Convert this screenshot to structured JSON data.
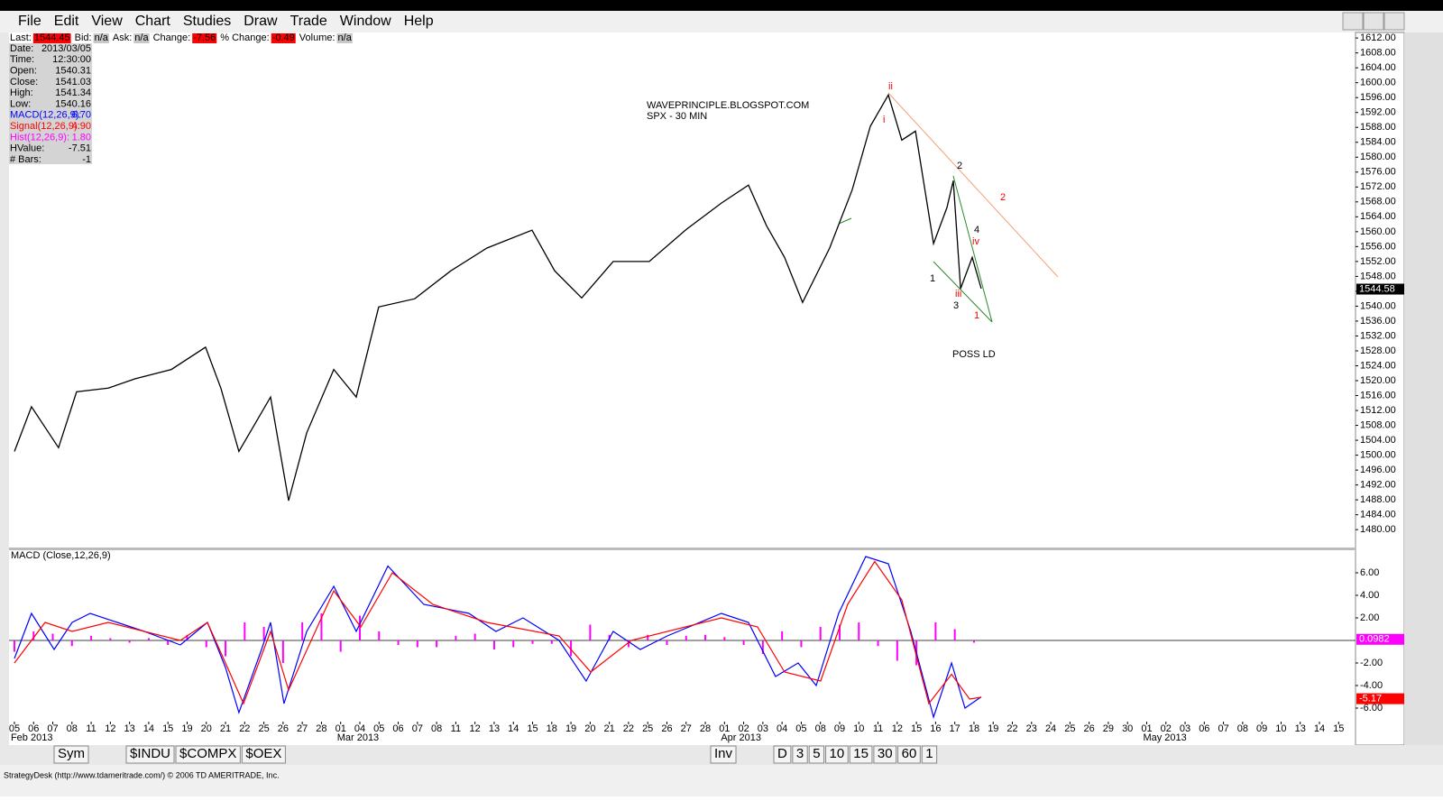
{
  "menu": [
    "File",
    "Edit",
    "View",
    "Chart",
    "Studies",
    "Draw",
    "Trade",
    "Window",
    "Help"
  ],
  "quote_bar": [
    [
      "Last:",
      "1544.45"
    ],
    [
      "Bid:",
      "n/a"
    ],
    [
      "Ask:",
      "n/a"
    ],
    [
      "Change:",
      "-7.56"
    ],
    [
      "% Change:",
      "-0.49"
    ],
    [
      "Volume:",
      "n/a"
    ]
  ],
  "info_panel": [
    [
      "Date:",
      "2013/03/05"
    ],
    [
      "Time:",
      "12:30:00"
    ],
    [
      "Open:",
      "1540.31"
    ],
    [
      "Close:",
      "1541.03"
    ],
    [
      "High:",
      "1541.34"
    ],
    [
      "Low:",
      "1540.16"
    ],
    [
      "MACD(12,26,9):",
      "6.70"
    ],
    [
      "Signal(12,26,9):",
      "4.90"
    ],
    [
      "Hist(12,26,9):",
      "1.80"
    ],
    [
      "HValue:",
      "-7.51"
    ],
    [
      "# Bars:",
      "-1"
    ]
  ],
  "chart_data": [
    {
      "type": "line",
      "title": "WAVEPRINCIPLE.BLOGSPOT.COM",
      "subtitle": "SPX - 30 MIN",
      "annotations": [
        "ii",
        "i",
        "2",
        "2",
        "4",
        "iv",
        "1",
        "iii",
        "3",
        "1",
        "POSS LD"
      ],
      "xlim": [
        -0.28,
        69.88
      ],
      "ylim": [
        1475.2,
        1613
      ],
      "yticks": [
        {
          "value": 1612,
          "label": "1612.00"
        },
        {
          "value": 1608,
          "label": "1608.00"
        },
        {
          "value": 1604,
          "label": "1604.00"
        },
        {
          "value": 1600,
          "label": "1600.00"
        },
        {
          "value": 1596,
          "label": "1596.00"
        },
        {
          "value": 1592,
          "label": "1592.00"
        },
        {
          "value": 1588,
          "label": "1588.00"
        },
        {
          "value": 1584,
          "label": "1584.00"
        },
        {
          "value": 1580,
          "label": "1580.00"
        },
        {
          "value": 1576,
          "label": "1576.00"
        },
        {
          "value": 1572,
          "label": "1572.00"
        },
        {
          "value": 1568,
          "label": "1568.00"
        },
        {
          "value": 1564,
          "label": "1564.00"
        },
        {
          "value": 1560,
          "label": "1560.00"
        },
        {
          "value": 1556,
          "label": "1556.00"
        },
        {
          "value": 1552,
          "label": "1552.00"
        },
        {
          "value": 1548,
          "label": "1548.00"
        },
        {
          "value": 1544,
          "label": "1544.00"
        },
        {
          "value": 1540,
          "label": "1540.00"
        },
        {
          "value": 1536,
          "label": "1536.00"
        },
        {
          "value": 1532,
          "label": "1532.00"
        },
        {
          "value": 1528,
          "label": "1528.00"
        },
        {
          "value": 1524,
          "label": "1524.00"
        },
        {
          "value": 1520,
          "label": "1520.00"
        },
        {
          "value": 1516,
          "label": "1516.00"
        },
        {
          "value": 1512,
          "label": "1512.00"
        },
        {
          "value": 1508,
          "label": "1508.00"
        },
        {
          "value": 1504,
          "label": "1504.00"
        },
        {
          "value": 1500,
          "label": "1500.00"
        },
        {
          "value": 1496,
          "label": "1496.00"
        },
        {
          "value": 1492,
          "label": "1492.00"
        },
        {
          "value": 1488,
          "label": "1488.00"
        },
        {
          "value": 1484,
          "label": "1484.00"
        },
        {
          "value": 1480,
          "label": "1480.00"
        }
      ],
      "last_value": 1544.58,
      "series": [
        {
          "name": "SPX",
          "color": "#000000",
          "x": [
            0,
            0.89,
            2.3,
            3.24,
            4.89,
            6.3,
            8.18,
            9.96,
            10.76,
            11.7,
            13.35,
            14.29,
            15.23,
            16.64,
            17.81,
            18.98,
            20.86,
            22.74,
            24.62,
            26.97,
            28.15,
            29.56,
            31.2,
            33.08,
            34.96,
            36.84,
            38.25,
            39.19,
            40.13,
            41.07,
            42.48,
            43.66,
            44.6,
            45.54,
            46.24,
            46.95,
            47.89,
            48.59,
            48.92,
            49.3,
            49.91,
            50.38
          ],
          "values": [
            1501,
            1513,
            1502,
            1517,
            1518,
            1520.5,
            1523,
            1529,
            1518,
            1501,
            1515.6,
            1487.8,
            1506,
            1523,
            1515.6,
            1539.8,
            1542,
            1549.5,
            1555.6,
            1560.4,
            1549.5,
            1542.2,
            1552,
            1552,
            1560.4,
            1567.7,
            1572.5,
            1561.6,
            1553.1,
            1541,
            1555.6,
            1571.3,
            1588.3,
            1596.7,
            1584.6,
            1587,
            1556.8,
            1566.5,
            1573.7,
            1544.7,
            1553.1,
            1544.7
          ]
        }
      ]
    },
    {
      "type": "line",
      "title": "MACD (Close,12,26,9)",
      "xlim": [
        -0.28,
        69.88
      ],
      "ylim": [
        -7.2,
        8
      ],
      "yticks": [
        {
          "value": 6,
          "label": "6.00"
        },
        {
          "value": 4,
          "label": "4.00"
        },
        {
          "value": 2,
          "label": "2.00"
        },
        {
          "value": -2,
          "label": "-2.00"
        },
        {
          "value": -4,
          "label": "-4.00"
        },
        {
          "value": -6,
          "label": "-6.00"
        }
      ],
      "xticks": [
        {
          "value": 0,
          "label": "05"
        },
        {
          "value": 1,
          "label": "06"
        },
        {
          "value": 2,
          "label": "07"
        },
        {
          "value": 3,
          "label": "08"
        },
        {
          "value": 4,
          "label": "11"
        },
        {
          "value": 5,
          "label": "12"
        },
        {
          "value": 6,
          "label": "13"
        },
        {
          "value": 7,
          "label": "14"
        },
        {
          "value": 8,
          "label": "15"
        },
        {
          "value": 9,
          "label": "19"
        },
        {
          "value": 10,
          "label": "20"
        },
        {
          "value": 11,
          "label": "21"
        },
        {
          "value": 12,
          "label": "22"
        },
        {
          "value": 13,
          "label": "25"
        },
        {
          "value": 14,
          "label": "26"
        },
        {
          "value": 15,
          "label": "27"
        },
        {
          "value": 16,
          "label": "28"
        },
        {
          "value": 17,
          "label": "01"
        },
        {
          "value": 18,
          "label": "04"
        },
        {
          "value": 19,
          "label": "05"
        },
        {
          "value": 20,
          "label": "06"
        },
        {
          "value": 21,
          "label": "07"
        },
        {
          "value": 22,
          "label": "08"
        },
        {
          "value": 23,
          "label": "11"
        },
        {
          "value": 24,
          "label": "12"
        },
        {
          "value": 25,
          "label": "13"
        },
        {
          "value": 26,
          "label": "14"
        },
        {
          "value": 27,
          "label": "15"
        },
        {
          "value": 28,
          "label": "18"
        },
        {
          "value": 29,
          "label": "19"
        },
        {
          "value": 30,
          "label": "20"
        },
        {
          "value": 31,
          "label": "21"
        },
        {
          "value": 32,
          "label": "22"
        },
        {
          "value": 33,
          "label": "25"
        },
        {
          "value": 34,
          "label": "26"
        },
        {
          "value": 35,
          "label": "27"
        },
        {
          "value": 36,
          "label": "28"
        },
        {
          "value": 37,
          "label": "01"
        },
        {
          "value": 38,
          "label": "02"
        },
        {
          "value": 39,
          "label": "03"
        },
        {
          "value": 40,
          "label": "04"
        },
        {
          "value": 41,
          "label": "05"
        },
        {
          "value": 42,
          "label": "08"
        },
        {
          "value": 43,
          "label": "09"
        },
        {
          "value": 44,
          "label": "10"
        },
        {
          "value": 45,
          "label": "11"
        },
        {
          "value": 46,
          "label": "12"
        },
        {
          "value": 47,
          "label": "15"
        },
        {
          "value": 48,
          "label": "16"
        },
        {
          "value": 49,
          "label": "17"
        },
        {
          "value": 50,
          "label": "18"
        },
        {
          "value": 51,
          "label": "19"
        },
        {
          "value": 52,
          "label": "22"
        },
        {
          "value": 53,
          "label": "23"
        },
        {
          "value": 54,
          "label": "24"
        },
        {
          "value": 55,
          "label": "25"
        },
        {
          "value": 56,
          "label": "26"
        },
        {
          "value": 57,
          "label": "29"
        },
        {
          "value": 58,
          "label": "30"
        },
        {
          "value": 59,
          "label": "01"
        },
        {
          "value": 60,
          "label": "02"
        },
        {
          "value": 61,
          "label": "03"
        },
        {
          "value": 62,
          "label": "06"
        },
        {
          "value": 63,
          "label": "07"
        },
        {
          "value": 64,
          "label": "08"
        },
        {
          "value": 65,
          "label": "09"
        },
        {
          "value": 66,
          "label": "10"
        },
        {
          "value": 67,
          "label": "13"
        },
        {
          "value": 68,
          "label": "14"
        },
        {
          "value": 69,
          "label": "15"
        }
      ],
      "month_labels": [
        {
          "value": 0,
          "label": "Feb 2013"
        },
        {
          "value": 17,
          "label": "Mar 2013"
        },
        {
          "value": 37,
          "label": "Apr 2013"
        },
        {
          "value": 59,
          "label": "May 2013"
        }
      ],
      "series": [
        {
          "name": "Hist",
          "color": "#ff00ff",
          "style": "bar",
          "last_value": 0.0982,
          "x": [
            0,
            1,
            2,
            3,
            4,
            5,
            6,
            7,
            8,
            9,
            10,
            11,
            12,
            13,
            14,
            15,
            16,
            17,
            18,
            19,
            20,
            21,
            22,
            23,
            24,
            25,
            26,
            27,
            28,
            29,
            30,
            31,
            32,
            33,
            34,
            35,
            36,
            37,
            38,
            39,
            40,
            41,
            42,
            43,
            44,
            45,
            46,
            47,
            48,
            49,
            50
          ],
          "values": [
            -1,
            0.8,
            0.6,
            -0.5,
            0.4,
            0.2,
            -0.2,
            0.2,
            -0.4,
            0.5,
            -0.6,
            -1.4,
            1.6,
            1.2,
            -2,
            1.6,
            2.4,
            -1,
            2.2,
            0.8,
            -0.4,
            -0.6,
            -0.6,
            0.4,
            0.6,
            -0.8,
            -0.6,
            -0.3,
            -0.3,
            -1.4,
            1.4,
            0.5,
            -0.6,
            0.5,
            -0.4,
            0.4,
            0.5,
            0.3,
            -0.4,
            -1.2,
            0.8,
            -0.6,
            1.2,
            1.4,
            1.6,
            -0.5,
            -1.8,
            -2.2,
            1.6,
            1,
            -0.2
          ]
        },
        {
          "name": "MACD",
          "color": "#0000ff",
          "x": [
            0,
            0.89,
            2.07,
            3.01,
            3.95,
            5.36,
            6.77,
            8.65,
            10.06,
            11,
            11.7,
            12.88,
            13.35,
            14.05,
            15.23,
            16.64,
            17.81,
            19.46,
            21.33,
            23.68,
            25.09,
            26.5,
            28.38,
            29.79,
            31.2,
            32.61,
            34.02,
            36.84,
            38.25,
            39.66,
            40.84,
            41.78,
            42.95,
            44.36,
            45.54,
            46.71,
            47.89,
            48.83,
            49.53,
            50.38
          ],
          "values": [
            -1.6,
            2.4,
            -0.8,
            1.6,
            2.4,
            1.6,
            0.8,
            -0.4,
            1.6,
            -2.4,
            -6.4,
            -0.8,
            1.6,
            -5.6,
            0.8,
            4.8,
            0.8,
            6.6,
            3.2,
            2.4,
            0.8,
            2,
            0,
            -3.6,
            0.8,
            -0.8,
            0.4,
            2.4,
            1.6,
            -3.2,
            -2,
            -4,
            2.4,
            7.44,
            6.8,
            0.8,
            -6.8,
            -2,
            -6,
            -5
          ]
        },
        {
          "name": "Signal",
          "color": "#ff0000",
          "last_value": -5.17,
          "x": [
            0,
            1.6,
            3.01,
            4.89,
            8.65,
            10.06,
            11.94,
            13.35,
            14.29,
            16.64,
            18.05,
            19.69,
            21.8,
            24.62,
            28.38,
            30.03,
            32.14,
            36.84,
            38.72,
            40.13,
            42.01,
            43.42,
            44.83,
            46.24,
            47.65,
            48.83,
            49.77,
            50.38
          ],
          "values": [
            -2,
            1.6,
            0.8,
            1.6,
            0,
            1.6,
            -5.6,
            0.8,
            -4.4,
            4.4,
            1.2,
            6,
            3.2,
            1.6,
            0.4,
            -2.8,
            0,
            2,
            1.2,
            -2.8,
            -3.6,
            3.2,
            7,
            3.6,
            -5.6,
            -3,
            -5.2,
            -5.04
          ]
        }
      ]
    }
  ],
  "bottom_bar": {
    "left": [
      "Sym",
      "$INDU",
      "$COMPX",
      "$OEX"
    ],
    "right": [
      "Inv",
      "D",
      "3",
      "5",
      "10",
      "15",
      "30",
      "60",
      "1"
    ]
  },
  "status": "StrategyDesk (http://www.tdameritrade.com/) © 2006 TD AMERITRADE, Inc."
}
